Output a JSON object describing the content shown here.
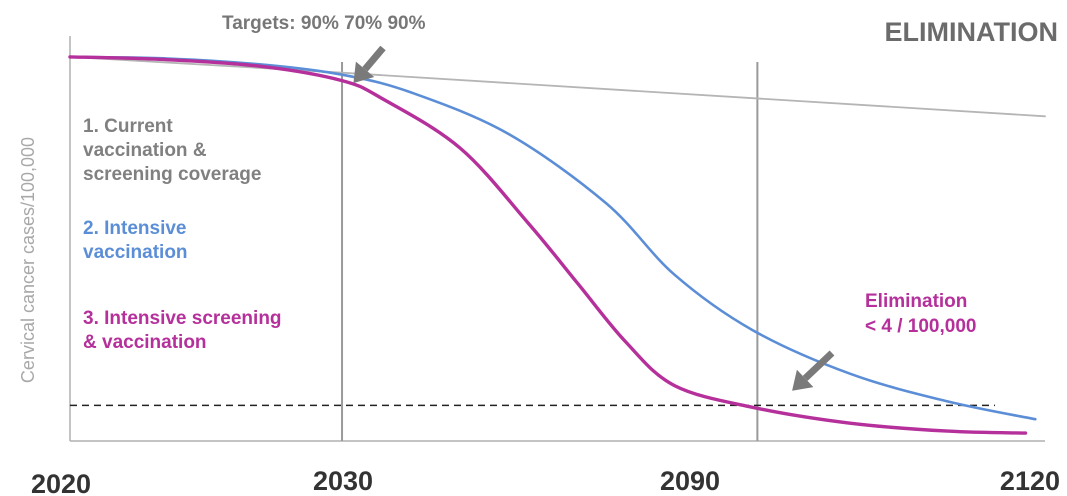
{
  "chart_data": {
    "type": "line",
    "title": "ELIMINATION",
    "annotation_top": "Targets: 90% 70% 90%",
    "ylabel": "Cervical cancer cases/100,000",
    "x_ticks": [
      "2020",
      "2030",
      "2090",
      "2120"
    ],
    "xlim": [
      0,
      100
    ],
    "ylim": [
      0,
      100
    ],
    "series": [
      {
        "name": "1. Current vaccination & screening coverage",
        "label_lines": [
          "1. Current",
          "vaccination &",
          "screening coverage"
        ],
        "color": "#b5b5b5",
        "x": [
          0,
          27.9,
          100
        ],
        "y": [
          97.0,
          93.0,
          82.0
        ]
      },
      {
        "name": "2. Intensive vaccination",
        "label_lines": [
          "2. Intensive",
          "vaccination"
        ],
        "color": "#5b8ed6",
        "x": [
          0,
          10,
          20,
          27.9,
          35,
          45,
          55,
          62,
          70,
          80,
          90,
          99
        ],
        "y": [
          97.0,
          96.6,
          95.0,
          92.5,
          88.0,
          77.5,
          60.0,
          42.0,
          28.0,
          17.0,
          10.0,
          5.5
        ]
      },
      {
        "name": "3. Intensive screening & vaccination",
        "label_lines": [
          "3. Intensive screening",
          "& vaccination"
        ],
        "color": "#b5309b",
        "x": [
          0,
          10,
          20,
          27.9,
          32,
          40,
          47,
          52,
          57,
          62,
          70,
          80,
          90,
          98
        ],
        "y": [
          97.0,
          96.3,
          94.5,
          91.0,
          86.5,
          74.0,
          55.0,
          40.0,
          25.0,
          14.0,
          8.5,
          4.5,
          2.5,
          2.0
        ]
      }
    ],
    "reference_lines": {
      "elimination_threshold": {
        "label_lines": [
          "Elimination",
          "< 4 / 100,000"
        ],
        "y": 9.0,
        "style": "dashed"
      },
      "target_year": {
        "x": 27.9
      },
      "elimination_year": {
        "x": 70.5
      }
    },
    "arrow_color": "#7a7a7a",
    "grid": false,
    "legend": "none"
  }
}
